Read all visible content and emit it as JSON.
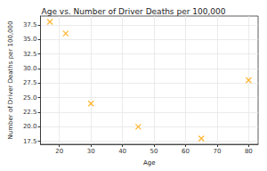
{
  "chart_data": {
    "type": "scatter",
    "title": "Age vs. Number of Driver Deaths per 100,000",
    "x_label": "Age",
    "y_label": "Number of Driver Deaths per 100,000",
    "x": [
      17,
      22,
      30,
      45,
      65,
      80
    ],
    "values": [
      38,
      36,
      24,
      20,
      18,
      28
    ],
    "color": "#ffa500",
    "marker": "x",
    "xlim": [
      14,
      83
    ],
    "xticks": [
      20,
      30,
      40,
      50,
      60,
      70,
      80
    ],
    "ylim": [
      17,
      39
    ],
    "yticks": [
      17.5,
      {
        "value": 20,
        "label": "20.0"
      },
      22.5,
      {
        "value": 25,
        "label": "25.0"
      },
      27.5,
      {
        "value": 30,
        "label": "30.0"
      },
      32.5,
      {
        "value": 35,
        "label": "35.0"
      },
      37.5
    ],
    "grid": true
  }
}
